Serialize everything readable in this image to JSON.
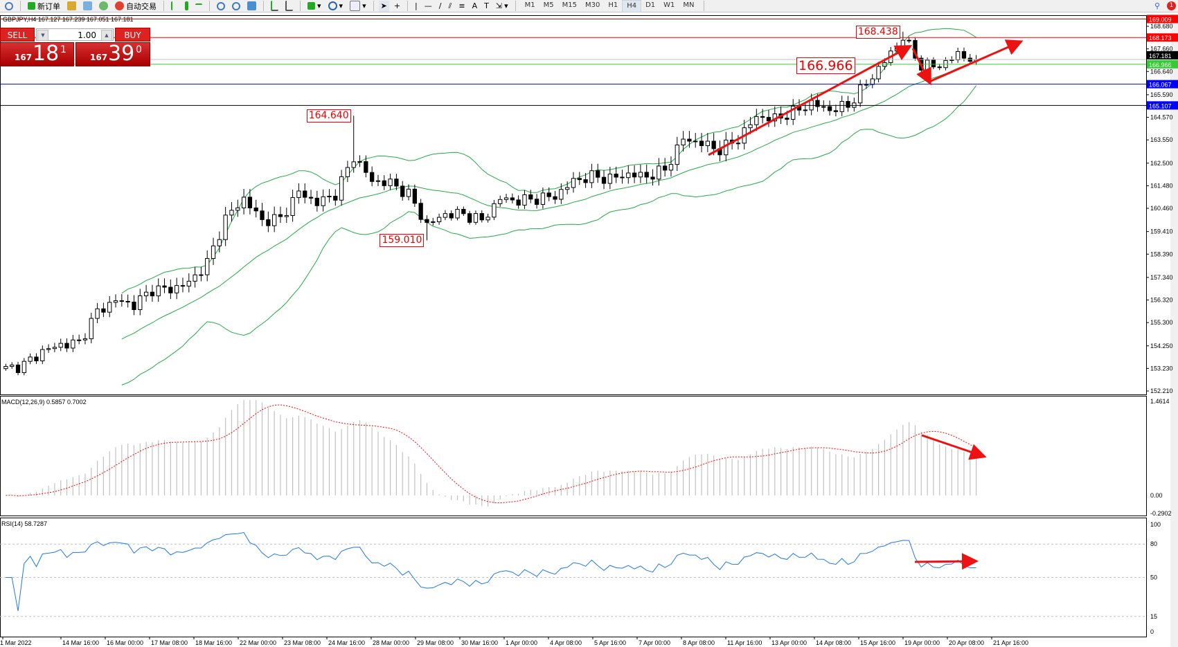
{
  "toolbar": {
    "new_order": "新订单",
    "auto_trading": "自动交易",
    "timeframes": [
      "M1",
      "M5",
      "M15",
      "M30",
      "H1",
      "H4",
      "D1",
      "W1",
      "MN"
    ],
    "active_timeframe": "H4",
    "notification_count": "1"
  },
  "header": {
    "symbol_line": "GBPJPY,H4  167.127 167.239 167.051 167.181"
  },
  "trade_panel": {
    "sell_label": "SELL",
    "buy_label": "BUY",
    "lot": "1.00",
    "sell_small": "167",
    "sell_big": "18",
    "sell_sup": "1",
    "buy_small": "167",
    "buy_big": "39",
    "buy_sup": "0"
  },
  "colors": {
    "bull": "#ffffff",
    "bear": "#000000",
    "bands": "#22aa44",
    "macd_hist": "#c0c0c0",
    "macd_signal": "#ff0000",
    "rsi": "#1e78e6",
    "annotation": "#ff0000"
  },
  "chart_data": [
    {
      "type": "candlestick",
      "symbol": "GBPJPY",
      "timeframe": "H4",
      "ylim": [
        152.21,
        169.009
      ],
      "y_ticks": [
        "168.680",
        "167.660",
        "166.640",
        "165.590",
        "164.570",
        "163.550",
        "162.500",
        "161.480",
        "160.460",
        "159.410",
        "158.390",
        "157.340",
        "156.320",
        "155.300",
        "154.250",
        "153.230",
        "152.210"
      ],
      "x_ticks": [
        "1 Mar 2022",
        "14 Mar 16:00",
        "16 Mar 00:00",
        "17 Mar 08:00",
        "18 Mar 16:00",
        "22 Mar 00:00",
        "23 Mar 08:00",
        "24 Mar 16:00",
        "28 Mar 00:00",
        "29 Mar 08:00",
        "30 Mar 16:00",
        "1 Apr 00:00",
        "4 Apr 08:00",
        "5 Apr 16:00",
        "7 Apr 00:00",
        "8 Apr 08:00",
        "11 Apr 16:00",
        "13 Apr 00:00",
        "14 Apr 08:00",
        "15 Apr 16:00",
        "19 Apr 00:00",
        "20 Apr 08:00",
        "21 Apr 16:00"
      ],
      "approx_closes": [
        153.2,
        153.4,
        154.0,
        154.3,
        154.4,
        155.8,
        156.3,
        156.1,
        156.8,
        156.8,
        157.1,
        158.0,
        160.0,
        160.9,
        159.9,
        160.0,
        161.2,
        160.7,
        161.1,
        162.8,
        161.7,
        161.6,
        161.1,
        159.7,
        160.2,
        160.2,
        159.9,
        160.9,
        160.8,
        160.9,
        161.0,
        161.7,
        161.9,
        161.8,
        162.0,
        161.9,
        162.2,
        163.6,
        163.4,
        163.1,
        163.6,
        164.6,
        164.5,
        164.8,
        165.2,
        164.9,
        165.1,
        166.1,
        167.1,
        168.2,
        166.9,
        166.9,
        167.4,
        167.181
      ],
      "indicators": [
        "Bollinger Bands(20,2)"
      ],
      "price_lines": [
        {
          "price": "169.009",
          "color": "#ff0000",
          "text": "#ffffff"
        },
        {
          "price": "168.173",
          "color": "#ff0000",
          "text": "#ffffff"
        },
        {
          "price": "167.181",
          "color": "#000000",
          "text": "#ffffff",
          "line": "#c0c0c0"
        },
        {
          "price": "166.966",
          "color": "#33cc33",
          "text": "#ffffff"
        },
        {
          "price": "166.067",
          "color": "#0000ff",
          "text": "#ffffff"
        },
        {
          "price": "165.107",
          "color": "#0000ff",
          "text": "#ffffff",
          "line": "#000000"
        }
      ],
      "annotations": [
        {
          "label": "164.640",
          "price": 164.64,
          "node": 19,
          "kind": "high"
        },
        {
          "label": "159.010",
          "price": 159.01,
          "node": 23,
          "kind": "low"
        },
        {
          "label": "168.438",
          "price": 168.438,
          "node": 49,
          "kind": "high"
        },
        {
          "label": "166.966",
          "price": 166.966
        }
      ]
    },
    {
      "type": "bar+line",
      "title": "MACD(12,26,9) 0.5857 0.7002",
      "ylim": [
        -0.2902,
        1.4614
      ],
      "y_ticks": [
        "1.4614",
        "0.00",
        "-0.2902"
      ],
      "main": 0.5857,
      "signal": 0.7002
    },
    {
      "type": "line",
      "title": "RSI(14) 58.7287",
      "ylim": [
        0,
        100
      ],
      "y_ticks": [
        "100",
        "80",
        "50",
        "15",
        "0"
      ],
      "levels": [
        80,
        50,
        15
      ],
      "value": 58.7287
    }
  ]
}
